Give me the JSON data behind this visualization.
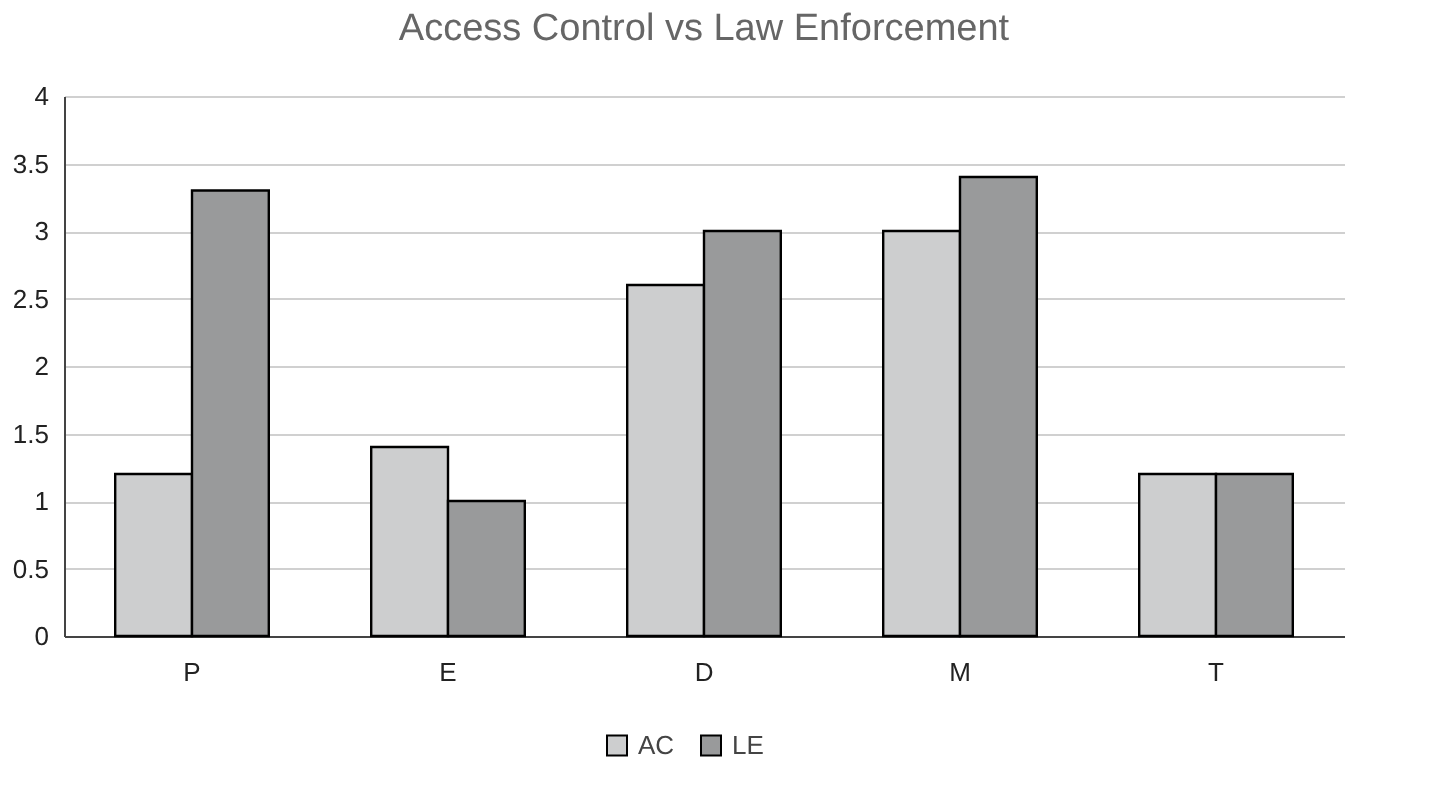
{
  "chart_data": {
    "type": "bar",
    "title": "Access Control vs Law Enforcement",
    "categories": [
      "P",
      "E",
      "D",
      "M",
      "T"
    ],
    "series": [
      {
        "name": "AC",
        "color": "#cdcecf",
        "values": [
          1.2,
          1.4,
          2.6,
          3.0,
          1.2
        ]
      },
      {
        "name": "LE",
        "color": "#999a9b",
        "values": [
          3.3,
          1.0,
          3.0,
          3.4,
          1.2
        ]
      }
    ],
    "ylim": [
      0,
      4
    ],
    "yticks": [
      0,
      0.5,
      1,
      1.5,
      2,
      2.5,
      3,
      3.5,
      4
    ],
    "grid": "y",
    "legend": "bottom"
  }
}
